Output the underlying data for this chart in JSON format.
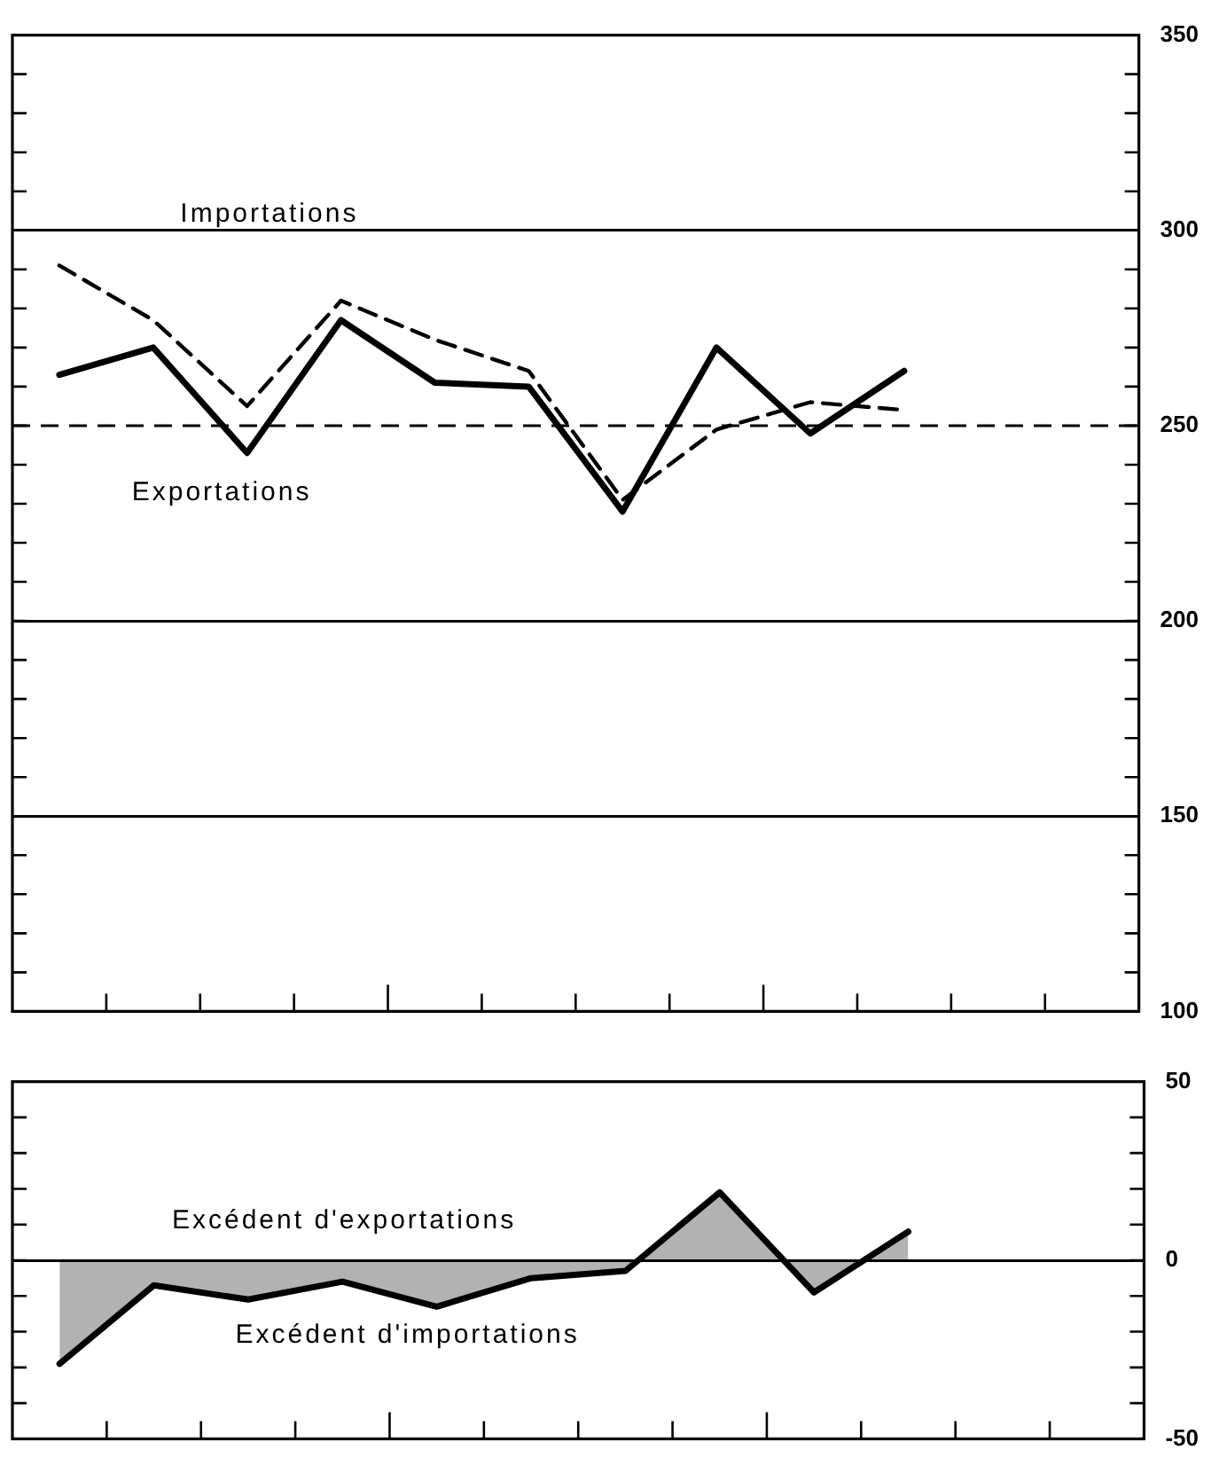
{
  "chart_data": [
    {
      "type": "line",
      "categories": [
        null,
        null,
        null,
        null,
        null,
        null,
        null,
        null,
        null,
        null,
        null,
        null
      ],
      "series": [
        {
          "name": "Importations",
          "color": "#000000",
          "line_style": "dashed",
          "values": [
            291,
            277,
            255,
            282,
            272,
            264,
            231,
            249,
            256,
            254,
            null,
            null
          ]
        },
        {
          "name": "Exportations",
          "color": "#000000",
          "line_style": "solid",
          "values": [
            263,
            270,
            243,
            277,
            261,
            260,
            228,
            270,
            248,
            264,
            null,
            null
          ]
        }
      ],
      "ylim": [
        100,
        350
      ],
      "yticks": [
        100,
        {
          "value": 110,
          "label": null
        },
        {
          "value": 120,
          "label": null
        },
        {
          "value": 130,
          "label": null
        },
        {
          "value": 140,
          "label": null
        },
        150,
        {
          "value": 160,
          "label": null
        },
        {
          "value": 170,
          "label": null
        },
        {
          "value": 180,
          "label": null
        },
        {
          "value": 190,
          "label": null
        },
        200,
        {
          "value": 210,
          "label": null
        },
        {
          "value": 220,
          "label": null
        },
        {
          "value": 230,
          "label": null
        },
        {
          "value": 240,
          "label": null
        },
        250,
        {
          "value": 260,
          "label": null
        },
        {
          "value": 270,
          "label": null
        },
        {
          "value": 280,
          "label": null
        },
        {
          "value": 290,
          "label": null
        },
        300,
        {
          "value": 310,
          "label": null
        },
        {
          "value": 320,
          "label": null
        },
        {
          "value": 330,
          "label": null
        },
        {
          "value": 340,
          "label": null
        },
        350
      ],
      "grid": "y",
      "tick_labels": "y",
      "marker": "none",
      "ref_lines": [
        {
          "axis": "y",
          "value": 250,
          "line_style": "dashed"
        }
      ]
    },
    {
      "type": "area",
      "categories": [
        null,
        null,
        null,
        null,
        null,
        null,
        null,
        null,
        null,
        null,
        null,
        null
      ],
      "series": [
        {
          "color": "#000000",
          "values": [
            -29,
            -7,
            -11,
            -6,
            -13,
            -5,
            -3,
            19,
            -9,
            8,
            null,
            null
          ]
        }
      ],
      "ylim": [
        -50,
        50
      ],
      "yticks": [
        -50,
        {
          "value": -40,
          "label": null
        },
        {
          "value": -30,
          "label": null
        },
        {
          "value": -20,
          "label": null
        },
        {
          "value": -10,
          "label": null
        },
        0,
        {
          "value": 10,
          "label": null
        },
        {
          "value": 20,
          "label": null
        },
        {
          "value": 30,
          "label": null
        },
        {
          "value": 40,
          "label": null
        },
        50
      ],
      "grid": "y",
      "tick_labels": "y",
      "marker": "none",
      "annotations": [
        "Excédent d'exportations",
        "Excédent d'importations"
      ]
    }
  ]
}
